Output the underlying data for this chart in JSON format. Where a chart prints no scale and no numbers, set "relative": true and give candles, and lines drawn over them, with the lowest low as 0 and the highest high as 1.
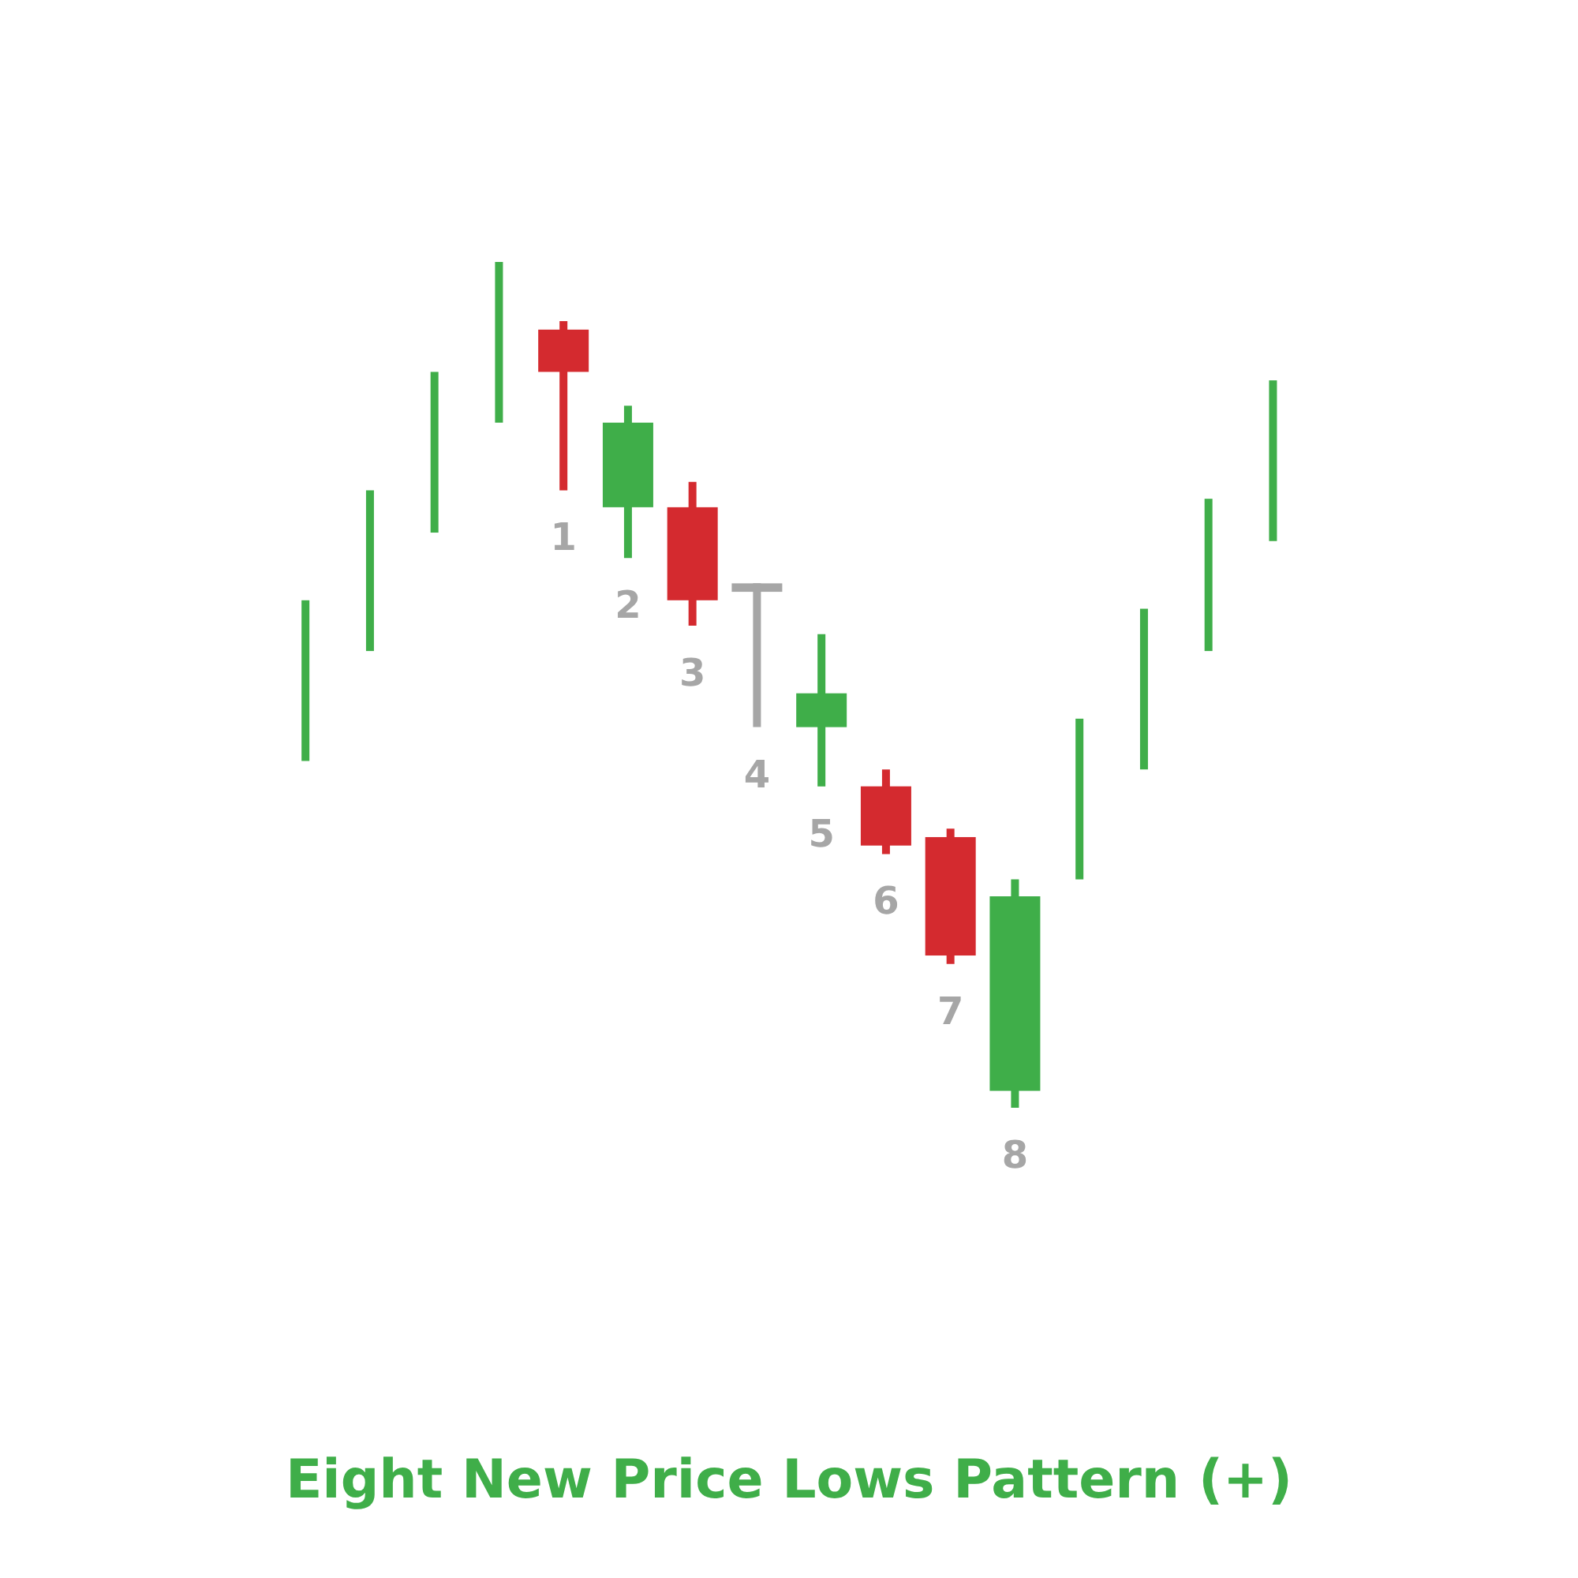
{
  "chart_data": {
    "type": "candlestick",
    "title": "Eight New Price Lows Pattern (+)",
    "relative": true,
    "categories": [
      null,
      null,
      null,
      null,
      "1",
      "2",
      "3",
      "4",
      "5",
      "6",
      "7",
      "8",
      null,
      null,
      null,
      null
    ],
    "ohlc": [
      [
        0.41,
        0.6,
        0.41,
        0.6
      ],
      [
        0.54,
        0.73,
        0.54,
        0.73
      ],
      [
        0.68,
        0.87,
        0.68,
        0.87
      ],
      [
        0.81,
        1,
        0.81,
        1
      ],
      [
        0.92,
        0.93,
        0.73,
        0.87
      ],
      [
        0.71,
        0.83,
        0.65,
        0.81
      ],
      [
        0.71,
        0.74,
        0.57,
        0.6
      ],
      [
        0.62,
        0.62,
        0.45,
        0.61
      ],
      [
        0.45,
        0.56,
        0.38,
        0.49
      ],
      [
        0.38,
        0.4,
        0.3,
        0.31
      ],
      [
        0.32,
        0.33,
        0.17,
        0.18
      ],
      [
        0.02,
        0.27,
        0,
        0.25
      ],
      [
        0.27,
        0.46,
        0.27,
        0.46
      ],
      [
        0.4,
        0.59,
        0.4,
        0.59
      ],
      [
        0.54,
        0.72,
        0.54,
        0.72
      ],
      [
        0.67,
        0.86,
        0.67,
        0.86
      ]
    ],
    "colors": [
      "#3fae49",
      "#3fae49",
      "#3fae49",
      "#3fae49",
      "#d42a2f",
      "#3fae49",
      "#d42a2f",
      "#a6a6a6",
      "#3fae49",
      "#d42a2f",
      "#d42a2f",
      "#3fae49",
      "#3fae49",
      "#3fae49",
      "#3fae49",
      "#3fae49"
    ]
  }
}
